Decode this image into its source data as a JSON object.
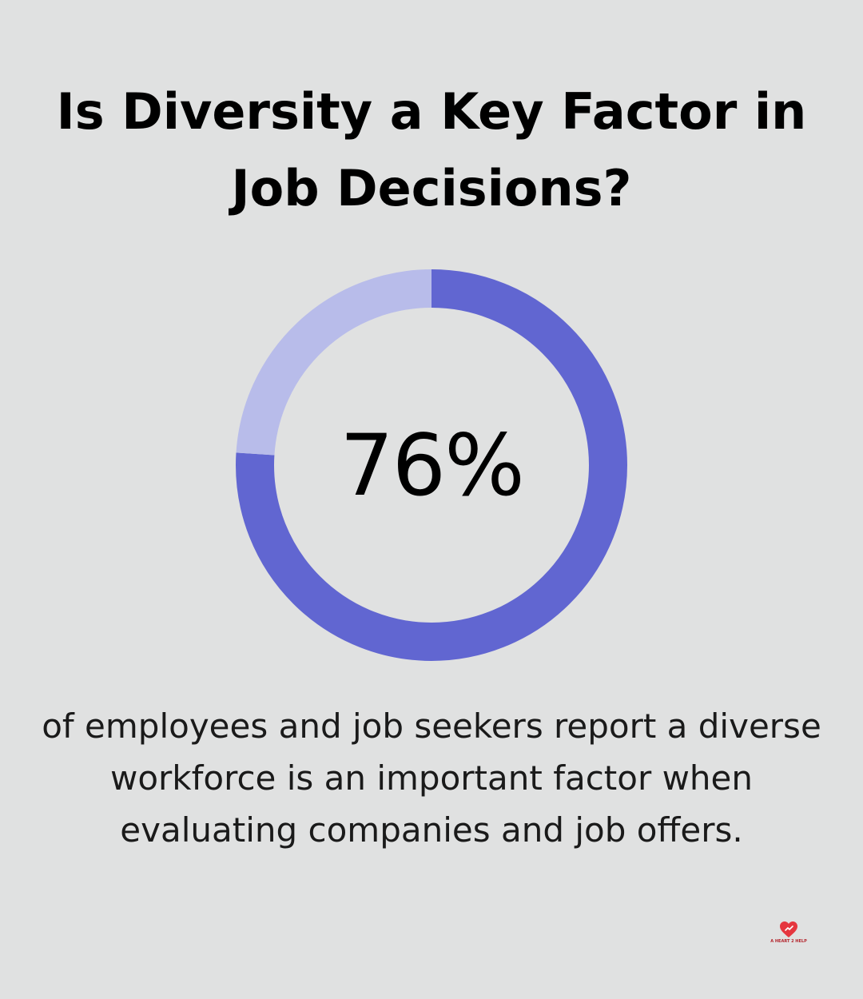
{
  "title": "Is Diversity a Key Factor in Job Decisions?",
  "chart_data": {
    "type": "pie",
    "variant": "donut",
    "value_percent": 76,
    "value_label": "76%",
    "segments": [
      {
        "value": 76,
        "color": "#6166d1"
      },
      {
        "value": 24,
        "color": "#b8bcea"
      }
    ]
  },
  "caption": "of employees and job seekers report a diverse workforce is an important factor when evaluating companies and job offers.",
  "logo": {
    "text": "A HEART 2 HELP",
    "icon": "heart-logo-icon",
    "color": "#e5363f"
  },
  "colors": {
    "background": "#e0e1e1",
    "primary": "#6166d1",
    "secondary": "#b8bcea",
    "text": "#000000"
  }
}
